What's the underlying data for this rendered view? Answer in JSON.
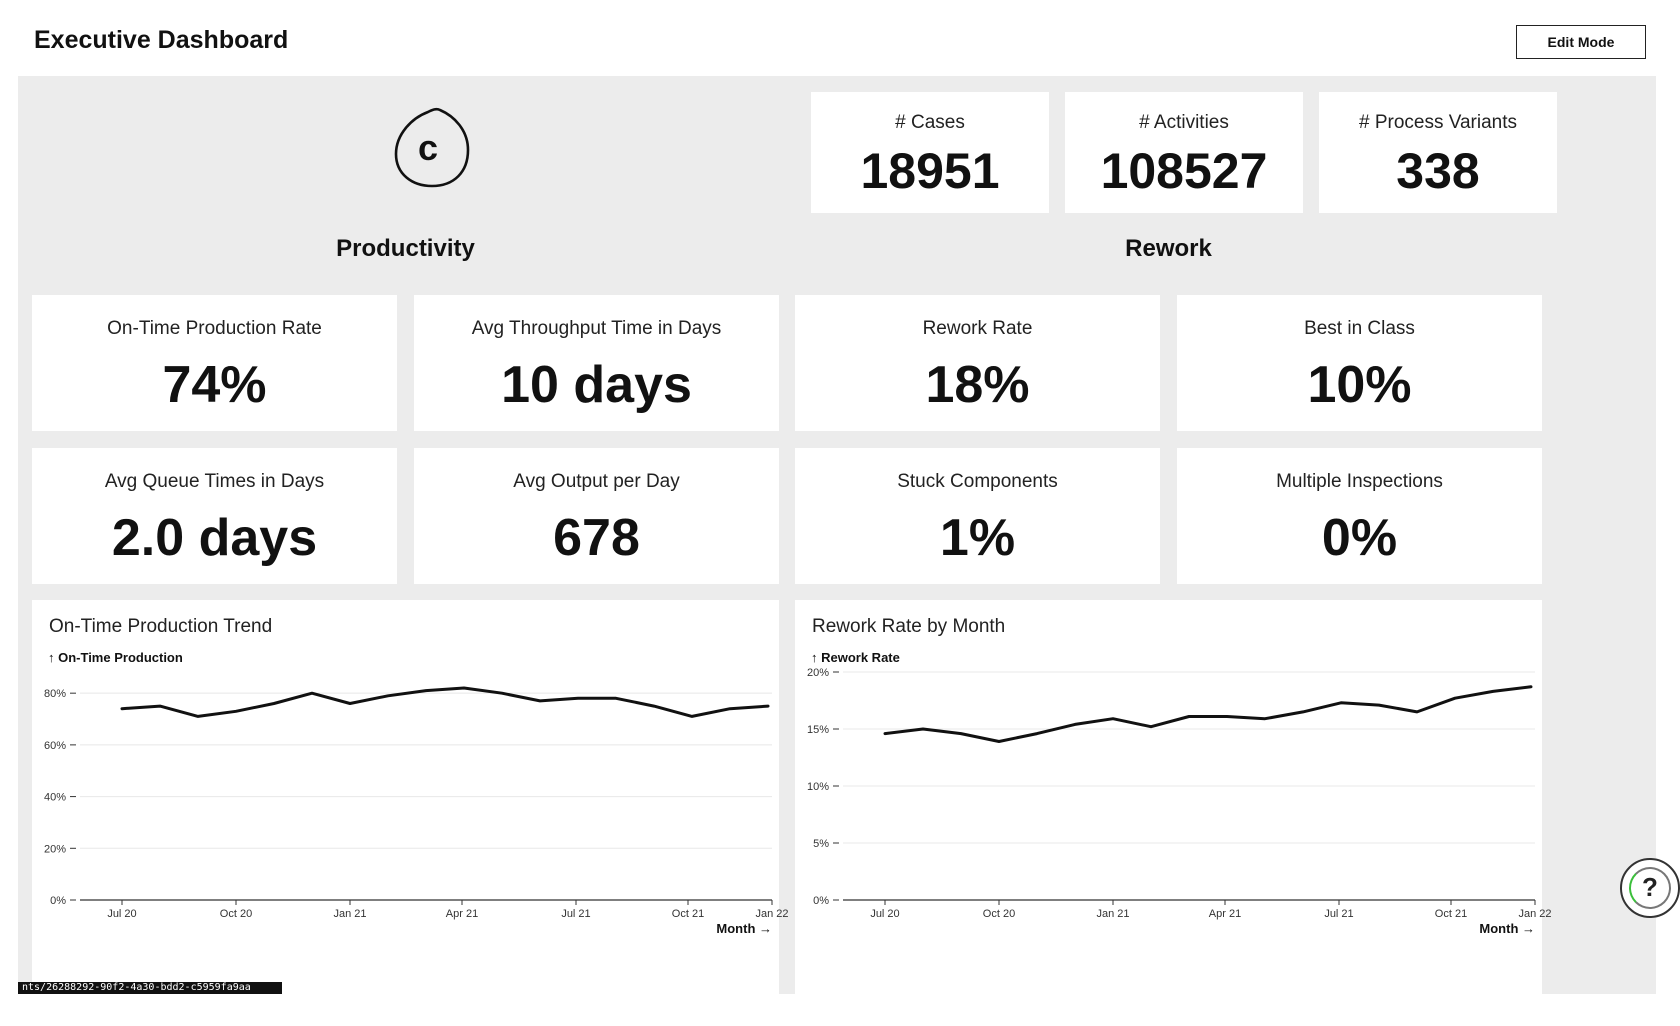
{
  "header": {
    "title": "Executive Dashboard",
    "edit_button": "Edit Mode"
  },
  "logo": {
    "letter": "c",
    "icon": "celonis-logo-icon"
  },
  "top_kpis": [
    {
      "label": "# Cases",
      "value": "18951"
    },
    {
      "label": "# Activities",
      "value": "108527"
    },
    {
      "label": "# Process Variants",
      "value": "338"
    }
  ],
  "sections": {
    "productivity": "Productivity",
    "rework": "Rework"
  },
  "productivity_kpis": [
    {
      "label": "On-Time Production Rate",
      "value": "74%"
    },
    {
      "label": "Avg Throughput Time in Days",
      "value": "10 days"
    },
    {
      "label": "Avg Queue Times in Days",
      "value": "2.0 days"
    },
    {
      "label": "Avg Output per Day",
      "value": "678"
    }
  ],
  "rework_kpis": [
    {
      "label": "Rework Rate",
      "value": "18%"
    },
    {
      "label": "Best in Class",
      "value": "10%"
    },
    {
      "label": "Stuck Components",
      "value": "1%"
    },
    {
      "label": "Multiple Inspections",
      "value": "0%"
    }
  ],
  "chart_data": [
    {
      "type": "line",
      "title": "On-Time Production Trend",
      "ylabel": "↑ On-Time Production",
      "xlabel": "Month →",
      "ylim": [
        0,
        82
      ],
      "yticks": [
        "0%",
        "20%",
        "40%",
        "60%",
        "80%"
      ],
      "ytick_values": [
        0,
        20,
        40,
        60,
        80
      ],
      "xticks": [
        "Jul 20",
        "Oct 20",
        "Jan 21",
        "Apr 21",
        "Jul 21",
        "Oct 21",
        "Jan 22"
      ],
      "x": [
        "2020-07",
        "2020-08",
        "2020-09",
        "2020-10",
        "2020-11",
        "2020-12",
        "2021-01",
        "2021-02",
        "2021-03",
        "2021-04",
        "2021-05",
        "2021-06",
        "2021-07",
        "2021-08",
        "2021-09",
        "2021-10",
        "2021-11",
        "2021-12"
      ],
      "series": [
        {
          "values": [
            74,
            75,
            71,
            73,
            76,
            80,
            76,
            79,
            81,
            82,
            80,
            77,
            78,
            78,
            75,
            71,
            74,
            75
          ]
        }
      ],
      "grid": true
    },
    {
      "type": "line",
      "title": "Rework Rate by Month",
      "ylabel": "↑ Rework Rate",
      "xlabel": "Month →",
      "ylim": [
        0,
        20
      ],
      "yticks": [
        "0%",
        "5%",
        "10%",
        "15%",
        "20%"
      ],
      "ytick_values": [
        0,
        5,
        10,
        15,
        20
      ],
      "xticks": [
        "Jul 20",
        "Oct 20",
        "Jan 21",
        "Apr 21",
        "Jul 21",
        "Oct 21",
        "Jan 22"
      ],
      "x": [
        "2020-07",
        "2020-08",
        "2020-09",
        "2020-10",
        "2020-11",
        "2020-12",
        "2021-01",
        "2021-02",
        "2021-03",
        "2021-04",
        "2021-05",
        "2021-06",
        "2021-07",
        "2021-08",
        "2021-09",
        "2021-10",
        "2021-11",
        "2021-12"
      ],
      "series": [
        {
          "values": [
            14.6,
            15.0,
            14.6,
            13.9,
            14.6,
            15.4,
            15.9,
            15.2,
            16.1,
            16.1,
            15.9,
            16.5,
            17.3,
            17.1,
            16.5,
            17.7,
            18.3,
            18.7
          ]
        }
      ],
      "grid": true
    }
  ],
  "status_bar": {
    "url": "nts/26288292-90f2-4a30-bdd2-c5959fa9aa"
  },
  "help": {
    "label": "?",
    "icon": "help-icon"
  },
  "colors": {
    "canvas": "#ececec",
    "card": "#ffffff",
    "line": "#111111",
    "grid": "#e6e6e6"
  }
}
